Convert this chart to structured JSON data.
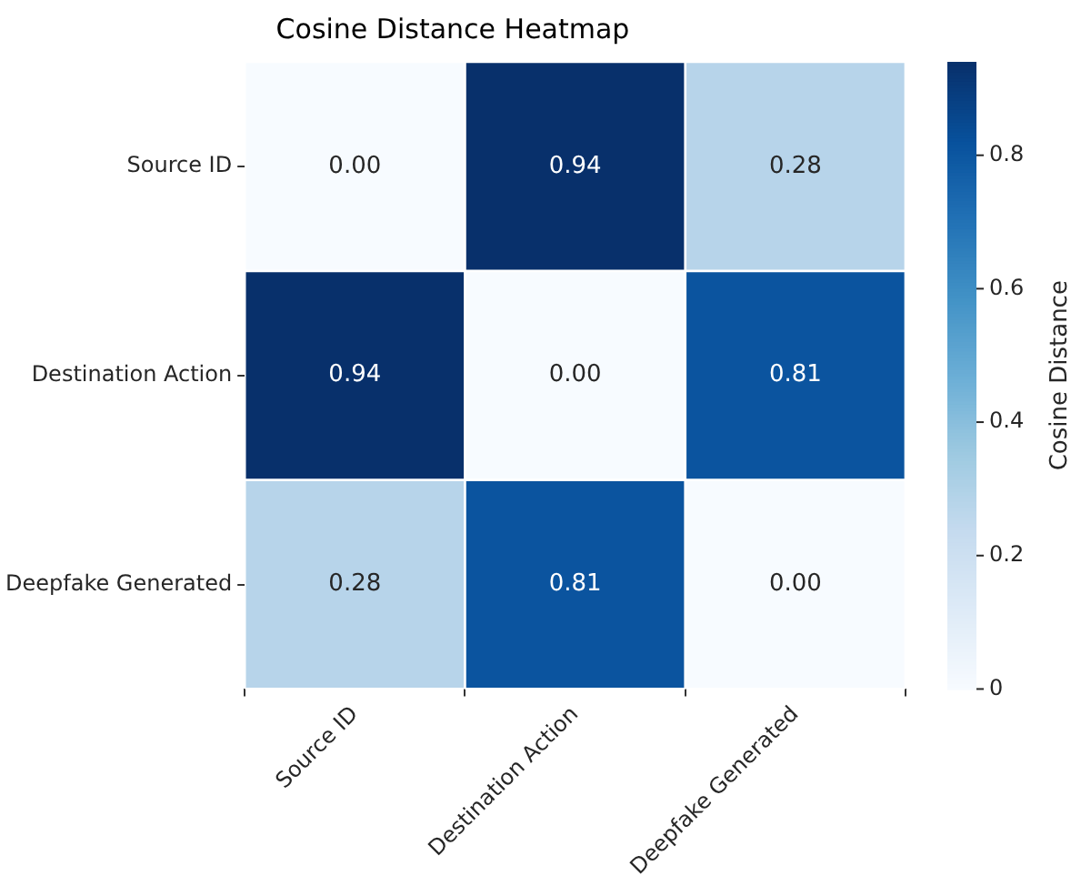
{
  "chart_data": {
    "type": "heatmap",
    "title": "Cosine Distance Heatmap",
    "clabel": "Cosine Distance",
    "categories": [
      "Source ID",
      "Destination Action",
      "Deepfake Generated"
    ],
    "y_categories": [
      "Source ID",
      "Destination Action",
      "Deepfake Generated"
    ],
    "cells": [
      [
        0.0,
        0.94,
        0.28
      ],
      [
        0.94,
        0.0,
        0.81
      ],
      [
        0.28,
        0.81,
        0.0
      ]
    ],
    "cell_labels": [
      [
        "0.00",
        "0.94",
        "0.28"
      ],
      [
        "0.94",
        "0.00",
        "0.81"
      ],
      [
        "0.28",
        "0.81",
        "0.00"
      ]
    ],
    "clim": [
      0,
      0.94
    ],
    "cticks": [
      0,
      0.2,
      0.4,
      0.6,
      0.8
    ]
  }
}
